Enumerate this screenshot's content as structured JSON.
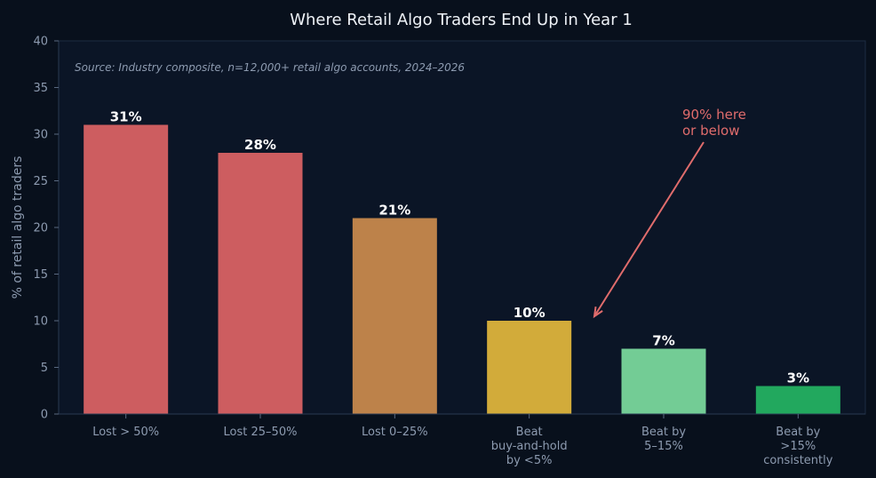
{
  "chart_data": {
    "type": "bar",
    "title": "Where Retail Algo Traders End Up in Year 1",
    "xlabel": "",
    "ylabel": "% of retail algo traders",
    "ylim": [
      0,
      40
    ],
    "yticks": [
      0,
      5,
      10,
      15,
      20,
      25,
      30,
      35,
      40
    ],
    "categories": [
      [
        "Lost > 50%"
      ],
      [
        "Lost 25–50%"
      ],
      [
        "Lost 0–25%"
      ],
      [
        "Beat",
        "buy-and-hold",
        "by <5%"
      ],
      [
        "Beat by",
        "5–15%"
      ],
      [
        "Beat by",
        ">15%",
        "consistently"
      ]
    ],
    "values": [
      31,
      28,
      21,
      10,
      7,
      3
    ],
    "value_labels": [
      "31%",
      "28%",
      "21%",
      "10%",
      "7%",
      "3%"
    ],
    "colors": [
      "#cd5d60",
      "#cd5d60",
      "#bd824a",
      "#d2ab3a",
      "#73cc95",
      "#22a85e"
    ],
    "source_note": "Source: Industry composite, n=12,000+ retail algo accounts, 2024–2026",
    "annotation": {
      "text": [
        "90% here",
        "or below"
      ],
      "color": "#e06c6c"
    },
    "grid": false,
    "legend": "none"
  }
}
